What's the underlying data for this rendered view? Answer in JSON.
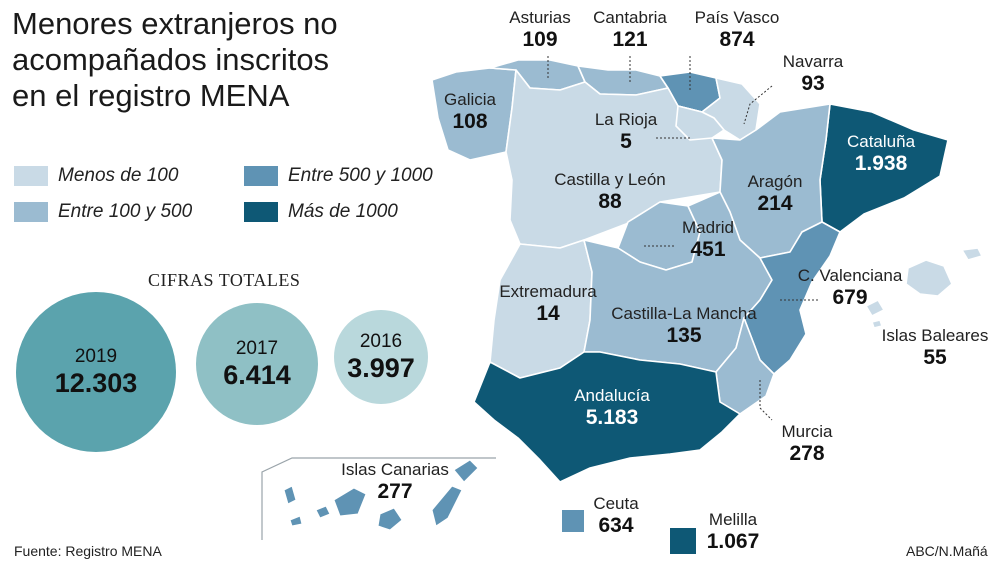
{
  "title": {
    "line1": "Menores extranjeros no",
    "line2": "acompañados inscritos",
    "line3": "en el registro MENA"
  },
  "legend": [
    {
      "label": "Menos de 100",
      "color": "#c9dae6"
    },
    {
      "label": "Entre 100 y 500",
      "color": "#9bbbd1"
    },
    {
      "label": "Entre 500 y 1000",
      "color": "#5f93b4"
    },
    {
      "label": "Más de 1000",
      "color": "#0e5875"
    }
  ],
  "totals": {
    "heading": "CIFRAS TOTALES",
    "years": [
      {
        "year": "2019",
        "value": "12.303",
        "color": "#5ba3ad"
      },
      {
        "year": "2017",
        "value": "6.414",
        "color": "#8fc0c5"
      },
      {
        "year": "2016",
        "value": "3.997",
        "color": "#b9d8dc"
      }
    ]
  },
  "regions": [
    {
      "id": "galicia",
      "name": "Galicia",
      "value": "108"
    },
    {
      "id": "asturias",
      "name": "Asturias",
      "value": "109"
    },
    {
      "id": "cantabria",
      "name": "Cantabria",
      "value": "121"
    },
    {
      "id": "pais-vasco",
      "name": "País Vasco",
      "value": "874"
    },
    {
      "id": "navarra",
      "name": "Navarra",
      "value": "93"
    },
    {
      "id": "la-rioja",
      "name": "La Rioja",
      "value": "5"
    },
    {
      "id": "castilla-leon",
      "name": "Castilla y León",
      "value": "88"
    },
    {
      "id": "cataluna",
      "name": "Cataluña",
      "value": "1.938"
    },
    {
      "id": "aragon",
      "name": "Aragón",
      "value": "214"
    },
    {
      "id": "madrid",
      "name": "Madrid",
      "value": "451"
    },
    {
      "id": "valenciana",
      "name": "C. Valenciana",
      "value": "679"
    },
    {
      "id": "extremadura",
      "name": "Extremadura",
      "value": "14"
    },
    {
      "id": "castilla-mancha",
      "name": "Castilla-La Mancha",
      "value": "135"
    },
    {
      "id": "baleares",
      "name": "Islas Baleares",
      "value": "55"
    },
    {
      "id": "andalucia",
      "name": "Andalucía",
      "value": "5.183"
    },
    {
      "id": "murcia",
      "name": "Murcia",
      "value": "278"
    },
    {
      "id": "canarias",
      "name": "Islas Canarias",
      "value": "277"
    },
    {
      "id": "ceuta",
      "name": "Ceuta",
      "value": "634"
    },
    {
      "id": "melilla",
      "name": "Melilla",
      "value": "1.067"
    }
  ],
  "footer": {
    "source": "Fuente: Registro MENA",
    "credit": "ABC/N.Mañá"
  }
}
